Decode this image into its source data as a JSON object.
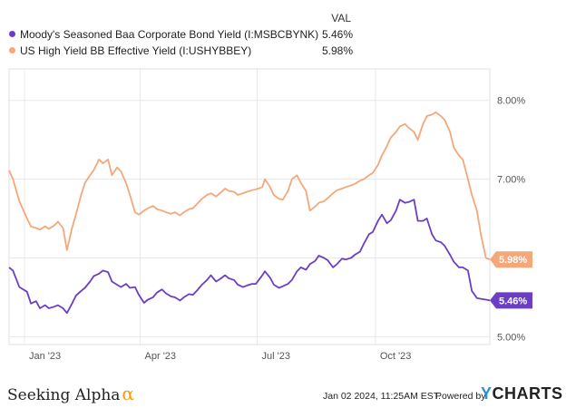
{
  "legend": {
    "header": "VAL",
    "items": [
      {
        "label": "Moody's Seasoned Baa Corporate Bond Yield (I:MSBCBYNK)",
        "value": "5.46%",
        "color": "#6a3fc6"
      },
      {
        "label": "US High Yield BB Effective Yield (I:USHYBBEY)",
        "value": "5.98%",
        "color": "#f5a77a"
      }
    ]
  },
  "chart_data": {
    "type": "line",
    "x_tick_labels": [
      "Jan '23",
      "Apr '23",
      "Jul '23",
      "Oct '23"
    ],
    "y_tick_labels": [
      "5.00%",
      "6.00%",
      "7.00%",
      "8.00%"
    ],
    "xlim": [
      "2022-12-20",
      "2023-12-29"
    ],
    "ylim": [
      4.9,
      8.4
    ],
    "grid": true,
    "series": [
      {
        "name": "Moody's Seasoned Baa Corporate Bond Yield (I:MSBCBYNK)",
        "color": "#6a3fc6",
        "end_label": "5.46%",
        "points": [
          [
            "2022-12-20",
            5.88
          ],
          [
            "2022-12-23",
            5.84
          ],
          [
            "2022-12-28",
            5.63
          ],
          [
            "2023-01-03",
            5.57
          ],
          [
            "2023-01-06",
            5.42
          ],
          [
            "2023-01-10",
            5.45
          ],
          [
            "2023-01-13",
            5.36
          ],
          [
            "2023-01-17",
            5.4
          ],
          [
            "2023-01-20",
            5.36
          ],
          [
            "2023-01-24",
            5.38
          ],
          [
            "2023-01-27",
            5.4
          ],
          [
            "2023-01-31",
            5.36
          ],
          [
            "2023-02-03",
            5.3
          ],
          [
            "2023-02-07",
            5.42
          ],
          [
            "2023-02-10",
            5.52
          ],
          [
            "2023-02-14",
            5.58
          ],
          [
            "2023-02-17",
            5.62
          ],
          [
            "2023-02-21",
            5.7
          ],
          [
            "2023-02-24",
            5.77
          ],
          [
            "2023-02-28",
            5.8
          ],
          [
            "2023-03-03",
            5.84
          ],
          [
            "2023-03-07",
            5.82
          ],
          [
            "2023-03-10",
            5.7
          ],
          [
            "2023-03-14",
            5.66
          ],
          [
            "2023-03-17",
            5.63
          ],
          [
            "2023-03-21",
            5.67
          ],
          [
            "2023-03-24",
            5.62
          ],
          [
            "2023-03-28",
            5.63
          ],
          [
            "2023-03-31",
            5.53
          ],
          [
            "2023-04-04",
            5.43
          ],
          [
            "2023-04-07",
            5.47
          ],
          [
            "2023-04-11",
            5.5
          ],
          [
            "2023-04-14",
            5.56
          ],
          [
            "2023-04-18",
            5.6
          ],
          [
            "2023-04-21",
            5.55
          ],
          [
            "2023-04-25",
            5.51
          ],
          [
            "2023-04-28",
            5.5
          ],
          [
            "2023-05-02",
            5.46
          ],
          [
            "2023-05-05",
            5.5
          ],
          [
            "2023-05-09",
            5.54
          ],
          [
            "2023-05-12",
            5.53
          ],
          [
            "2023-05-16",
            5.6
          ],
          [
            "2023-05-19",
            5.66
          ],
          [
            "2023-05-23",
            5.72
          ],
          [
            "2023-05-26",
            5.78
          ],
          [
            "2023-05-30",
            5.7
          ],
          [
            "2023-06-02",
            5.73
          ],
          [
            "2023-06-06",
            5.78
          ],
          [
            "2023-06-09",
            5.74
          ],
          [
            "2023-06-13",
            5.72
          ],
          [
            "2023-06-16",
            5.66
          ],
          [
            "2023-06-20",
            5.63
          ],
          [
            "2023-06-23",
            5.65
          ],
          [
            "2023-06-27",
            5.67
          ],
          [
            "2023-06-30",
            5.67
          ],
          [
            "2023-07-05",
            5.78
          ],
          [
            "2023-07-07",
            5.83
          ],
          [
            "2023-07-11",
            5.75
          ],
          [
            "2023-07-14",
            5.66
          ],
          [
            "2023-07-18",
            5.62
          ],
          [
            "2023-07-21",
            5.64
          ],
          [
            "2023-07-25",
            5.67
          ],
          [
            "2023-07-28",
            5.72
          ],
          [
            "2023-08-01",
            5.83
          ],
          [
            "2023-08-04",
            5.88
          ],
          [
            "2023-08-08",
            5.85
          ],
          [
            "2023-08-11",
            5.92
          ],
          [
            "2023-08-15",
            5.96
          ],
          [
            "2023-08-18",
            6.03
          ],
          [
            "2023-08-22",
            6.0
          ],
          [
            "2023-08-25",
            5.97
          ],
          [
            "2023-08-29",
            5.88
          ],
          [
            "2023-09-01",
            5.92
          ],
          [
            "2023-09-05",
            5.99
          ],
          [
            "2023-09-08",
            5.98
          ],
          [
            "2023-09-12",
            6.0
          ],
          [
            "2023-09-15",
            6.04
          ],
          [
            "2023-09-19",
            6.08
          ],
          [
            "2023-09-22",
            6.18
          ],
          [
            "2023-09-26",
            6.3
          ],
          [
            "2023-09-29",
            6.33
          ],
          [
            "2023-10-03",
            6.47
          ],
          [
            "2023-10-06",
            6.55
          ],
          [
            "2023-10-10",
            6.44
          ],
          [
            "2023-10-13",
            6.48
          ],
          [
            "2023-10-17",
            6.6
          ],
          [
            "2023-10-20",
            6.74
          ],
          [
            "2023-10-24",
            6.7
          ],
          [
            "2023-10-27",
            6.71
          ],
          [
            "2023-10-31",
            6.74
          ],
          [
            "2023-11-03",
            6.47
          ],
          [
            "2023-11-07",
            6.47
          ],
          [
            "2023-11-10",
            6.5
          ],
          [
            "2023-11-14",
            6.3
          ],
          [
            "2023-11-17",
            6.22
          ],
          [
            "2023-11-21",
            6.2
          ],
          [
            "2023-11-24",
            6.15
          ],
          [
            "2023-11-28",
            6.04
          ],
          [
            "2023-12-01",
            5.95
          ],
          [
            "2023-12-05",
            5.88
          ],
          [
            "2023-12-08",
            5.88
          ],
          [
            "2023-12-12",
            5.84
          ],
          [
            "2023-12-15",
            5.58
          ],
          [
            "2023-12-19",
            5.49
          ],
          [
            "2023-12-22",
            5.48
          ],
          [
            "2023-12-26",
            5.47
          ],
          [
            "2023-12-29",
            5.46
          ]
        ]
      },
      {
        "name": "US High Yield BB Effective Yield (I:USHYBBEY)",
        "color": "#f5a77a",
        "end_label": "5.98%",
        "points": [
          [
            "2022-12-20",
            7.11
          ],
          [
            "2022-12-23",
            7.0
          ],
          [
            "2022-12-28",
            6.72
          ],
          [
            "2023-01-03",
            6.5
          ],
          [
            "2023-01-06",
            6.4
          ],
          [
            "2023-01-10",
            6.38
          ],
          [
            "2023-01-13",
            6.36
          ],
          [
            "2023-01-17",
            6.4
          ],
          [
            "2023-01-20",
            6.37
          ],
          [
            "2023-01-24",
            6.41
          ],
          [
            "2023-01-27",
            6.46
          ],
          [
            "2023-01-31",
            6.38
          ],
          [
            "2023-02-03",
            6.1
          ],
          [
            "2023-02-07",
            6.38
          ],
          [
            "2023-02-10",
            6.55
          ],
          [
            "2023-02-14",
            6.8
          ],
          [
            "2023-02-17",
            6.95
          ],
          [
            "2023-02-21",
            7.05
          ],
          [
            "2023-02-24",
            7.12
          ],
          [
            "2023-02-28",
            7.25
          ],
          [
            "2023-03-03",
            7.2
          ],
          [
            "2023-03-07",
            7.25
          ],
          [
            "2023-03-10",
            7.05
          ],
          [
            "2023-03-14",
            7.15
          ],
          [
            "2023-03-17",
            7.1
          ],
          [
            "2023-03-21",
            6.95
          ],
          [
            "2023-03-24",
            6.8
          ],
          [
            "2023-03-28",
            6.58
          ],
          [
            "2023-03-31",
            6.55
          ],
          [
            "2023-04-04",
            6.6
          ],
          [
            "2023-04-07",
            6.63
          ],
          [
            "2023-04-11",
            6.66
          ],
          [
            "2023-04-14",
            6.62
          ],
          [
            "2023-04-18",
            6.6
          ],
          [
            "2023-04-21",
            6.58
          ],
          [
            "2023-04-25",
            6.56
          ],
          [
            "2023-04-28",
            6.58
          ],
          [
            "2023-05-02",
            6.54
          ],
          [
            "2023-05-05",
            6.58
          ],
          [
            "2023-05-09",
            6.62
          ],
          [
            "2023-05-12",
            6.63
          ],
          [
            "2023-05-16",
            6.7
          ],
          [
            "2023-05-19",
            6.75
          ],
          [
            "2023-05-23",
            6.8
          ],
          [
            "2023-05-26",
            6.82
          ],
          [
            "2023-05-30",
            6.78
          ],
          [
            "2023-06-02",
            6.82
          ],
          [
            "2023-06-06",
            6.88
          ],
          [
            "2023-06-09",
            6.85
          ],
          [
            "2023-06-13",
            6.84
          ],
          [
            "2023-06-16",
            6.8
          ],
          [
            "2023-06-20",
            6.82
          ],
          [
            "2023-06-23",
            6.84
          ],
          [
            "2023-06-27",
            6.86
          ],
          [
            "2023-06-30",
            6.87
          ],
          [
            "2023-07-05",
            6.9
          ],
          [
            "2023-07-07",
            7.0
          ],
          [
            "2023-07-11",
            6.9
          ],
          [
            "2023-07-14",
            6.8
          ],
          [
            "2023-07-18",
            6.75
          ],
          [
            "2023-07-21",
            6.74
          ],
          [
            "2023-07-25",
            6.85
          ],
          [
            "2023-07-28",
            7.0
          ],
          [
            "2023-08-01",
            7.05
          ],
          [
            "2023-08-04",
            6.95
          ],
          [
            "2023-08-08",
            6.85
          ],
          [
            "2023-08-11",
            6.6
          ],
          [
            "2023-08-15",
            6.65
          ],
          [
            "2023-08-18",
            6.7
          ],
          [
            "2023-08-22",
            6.72
          ],
          [
            "2023-08-25",
            6.76
          ],
          [
            "2023-08-29",
            6.82
          ],
          [
            "2023-09-01",
            6.86
          ],
          [
            "2023-09-05",
            6.88
          ],
          [
            "2023-09-08",
            6.9
          ],
          [
            "2023-09-12",
            6.92
          ],
          [
            "2023-09-15",
            6.94
          ],
          [
            "2023-09-19",
            6.98
          ],
          [
            "2023-09-22",
            7.0
          ],
          [
            "2023-09-26",
            7.05
          ],
          [
            "2023-09-29",
            7.08
          ],
          [
            "2023-10-03",
            7.18
          ],
          [
            "2023-10-06",
            7.3
          ],
          [
            "2023-10-10",
            7.42
          ],
          [
            "2023-10-13",
            7.53
          ],
          [
            "2023-10-17",
            7.6
          ],
          [
            "2023-10-20",
            7.67
          ],
          [
            "2023-10-24",
            7.7
          ],
          [
            "2023-10-27",
            7.65
          ],
          [
            "2023-10-31",
            7.6
          ],
          [
            "2023-11-03",
            7.5
          ],
          [
            "2023-11-07",
            7.7
          ],
          [
            "2023-11-10",
            7.8
          ],
          [
            "2023-11-14",
            7.82
          ],
          [
            "2023-11-17",
            7.85
          ],
          [
            "2023-11-21",
            7.8
          ],
          [
            "2023-11-24",
            7.75
          ],
          [
            "2023-11-28",
            7.6
          ],
          [
            "2023-12-01",
            7.4
          ],
          [
            "2023-12-05",
            7.3
          ],
          [
            "2023-12-08",
            7.25
          ],
          [
            "2023-12-12",
            7.0
          ],
          [
            "2023-12-15",
            6.8
          ],
          [
            "2023-12-19",
            6.6
          ],
          [
            "2023-12-22",
            6.3
          ],
          [
            "2023-12-26",
            6.0
          ],
          [
            "2023-12-29",
            5.98
          ]
        ]
      }
    ]
  },
  "footer": {
    "brand": "Seeking Alpha",
    "brand_mark": "α",
    "timestamp": "Jan 02 2024, 11:25AM EST.",
    "powered_by": "Powered by",
    "ycharts_y": "Y",
    "ycharts_rest": "CHARTS"
  }
}
